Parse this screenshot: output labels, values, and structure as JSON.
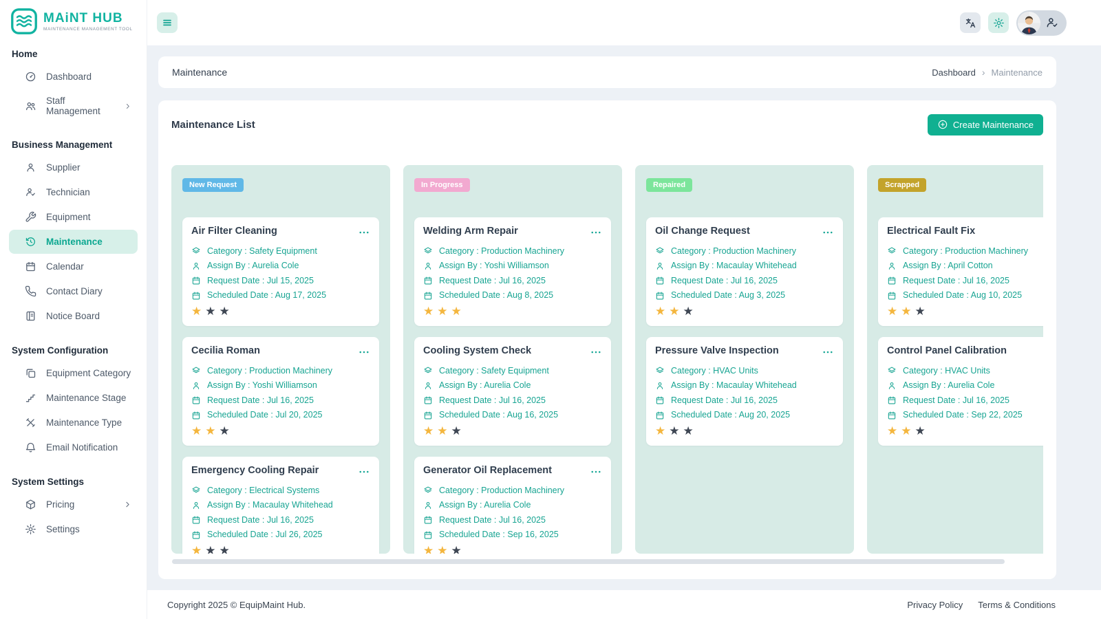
{
  "brand": {
    "name": "MAiNT HUB",
    "tagline": "MAINTENANCE MANAGEMENT TOOL"
  },
  "sidebar": {
    "sections": [
      {
        "title": "Home",
        "items": [
          {
            "label": "Dashboard",
            "icon": "dashboard"
          },
          {
            "label": "Staff Management",
            "icon": "staff",
            "chevron": true
          }
        ]
      },
      {
        "title": "Business Management",
        "items": [
          {
            "label": "Supplier",
            "icon": "supplier"
          },
          {
            "label": "Technician",
            "icon": "technician"
          },
          {
            "label": "Equipment",
            "icon": "equipment"
          },
          {
            "label": "Maintenance",
            "icon": "maintenance",
            "active": true
          },
          {
            "label": "Calendar",
            "icon": "calendar"
          },
          {
            "label": "Contact Diary",
            "icon": "contact"
          },
          {
            "label": "Notice Board",
            "icon": "notice"
          }
        ]
      },
      {
        "title": "System Configuration",
        "items": [
          {
            "label": "Equipment Category",
            "icon": "copy"
          },
          {
            "label": "Maintenance Stage",
            "icon": "stage"
          },
          {
            "label": "Maintenance Type",
            "icon": "type"
          },
          {
            "label": "Email Notification",
            "icon": "bell"
          }
        ]
      },
      {
        "title": "System Settings",
        "items": [
          {
            "label": "Pricing",
            "icon": "pricing",
            "chevron": true
          },
          {
            "label": "Settings",
            "icon": "gear"
          }
        ]
      }
    ]
  },
  "breadcrumb": {
    "page_title": "Maintenance",
    "items": [
      "Dashboard",
      "Maintenance"
    ]
  },
  "main": {
    "list_title": "Maintenance List",
    "create_button_label": "Create Maintenance"
  },
  "card_labels": {
    "category": "Category : ",
    "assign_by": "Assign By : ",
    "request_date": "Request Date : ",
    "scheduled_date": "Scheduled Date : "
  },
  "board": {
    "columns": [
      {
        "status": "New Request",
        "badge_color": "#60b8e7",
        "cards": [
          {
            "title": "Air Filter Cleaning",
            "category": "Safety Equipment",
            "assign_by": "Aurelia Cole",
            "request_date": "Jul 15, 2025",
            "scheduled_date": "Aug 17, 2025",
            "rating": 1,
            "rating_max": 3
          },
          {
            "title": "Cecilia Roman",
            "category": "Production Machinery",
            "assign_by": "Yoshi Williamson",
            "request_date": "Jul 16, 2025",
            "scheduled_date": "Jul 20, 2025",
            "rating": 2,
            "rating_max": 3
          },
          {
            "title": "Emergency Cooling Repair",
            "category": "Electrical Systems",
            "assign_by": "Macaulay Whitehead",
            "request_date": "Jul 16, 2025",
            "scheduled_date": "Jul 26, 2025",
            "rating": 1,
            "rating_max": 3
          }
        ]
      },
      {
        "status": "In Progress",
        "badge_color": "#f2a9d0",
        "cards": [
          {
            "title": "Welding Arm Repair",
            "category": "Production Machinery",
            "assign_by": "Yoshi Williamson",
            "request_date": "Jul 16, 2025",
            "scheduled_date": "Aug 8, 2025",
            "rating": 3,
            "rating_max": 3
          },
          {
            "title": "Cooling System Check",
            "category": "Safety Equipment",
            "assign_by": "Aurelia Cole",
            "request_date": "Jul 16, 2025",
            "scheduled_date": "Aug 16, 2025",
            "rating": 2,
            "rating_max": 3
          },
          {
            "title": "Generator Oil Replacement",
            "category": "Production Machinery",
            "assign_by": "Aurelia Cole",
            "request_date": "Jul 16, 2025",
            "scheduled_date": "Sep 16, 2025",
            "rating": 2,
            "rating_max": 3
          }
        ]
      },
      {
        "status": "Repaired",
        "badge_color": "#7ce59b",
        "cards": [
          {
            "title": "Oil Change Request",
            "category": "Production Machinery",
            "assign_by": "Macaulay Whitehead",
            "request_date": "Jul 16, 2025",
            "scheduled_date": "Aug 3, 2025",
            "rating": 2,
            "rating_max": 3
          },
          {
            "title": "Pressure Valve Inspection",
            "category": "HVAC Units",
            "assign_by": "Macaulay Whitehead",
            "request_date": "Jul 16, 2025",
            "scheduled_date": "Aug 20, 2025",
            "rating": 1,
            "rating_max": 3
          }
        ]
      },
      {
        "status": "Scrapped",
        "badge_color": "#c3a32b",
        "cards": [
          {
            "title": "Electrical Fault Fix",
            "category": "Production Machinery",
            "assign_by": "April Cotton",
            "request_date": "Jul 16, 2025",
            "scheduled_date": "Aug 10, 2025",
            "rating": 2,
            "rating_max": 3
          },
          {
            "title": "Control Panel Calibration",
            "category": "HVAC Units",
            "assign_by": "Aurelia Cole",
            "request_date": "Jul 16, 2025",
            "scheduled_date": "Sep 22, 2025",
            "rating": 2,
            "rating_max": 3
          }
        ]
      }
    ]
  },
  "footer": {
    "copyright": "Copyright 2025 © EquipMaint Hub.",
    "links": [
      "Privacy Policy",
      "Terms & Conditions"
    ]
  },
  "colors": {
    "accent_teal": "#10a391",
    "create_button": "#10b091",
    "column_background": "#d7ebe6",
    "sidebar_active_background": "#d7f0e9",
    "star_active": "#f4b63e",
    "star_inactive": "#3e4653",
    "page_background": "#edf1f6"
  }
}
